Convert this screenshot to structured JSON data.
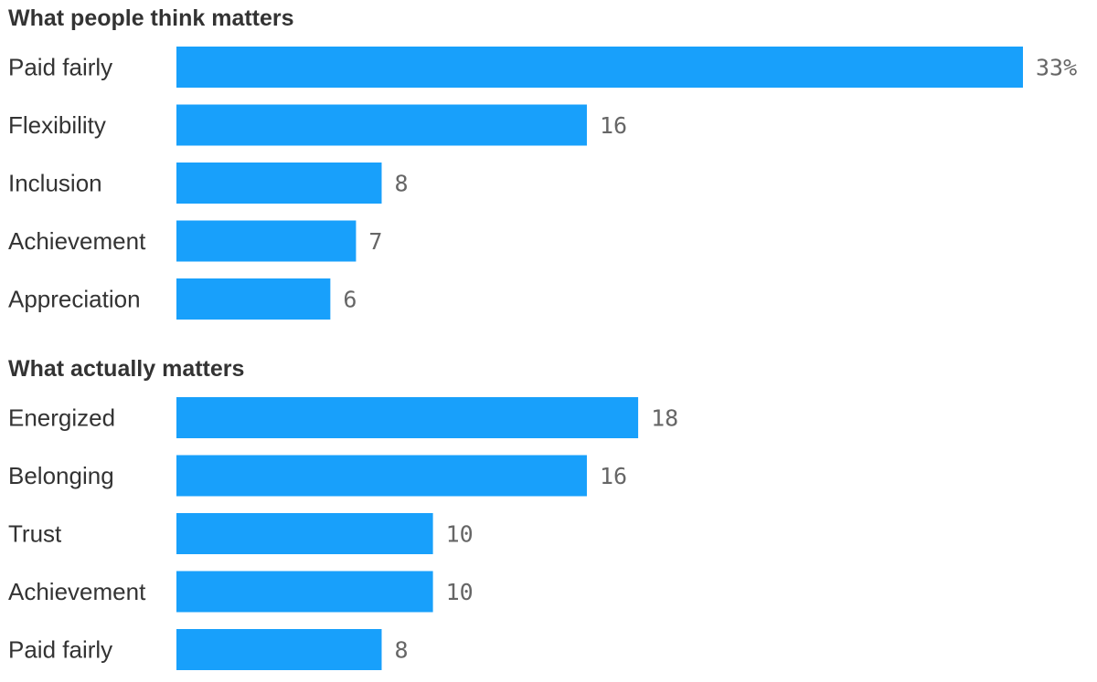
{
  "chart_data": [
    {
      "type": "bar",
      "orientation": "horizontal",
      "title": "What people think matters",
      "categories": [
        "Paid fairly",
        "Flexibility",
        "Inclusion",
        "Achievement",
        "Appreciation"
      ],
      "values": [
        33,
        16,
        8,
        7,
        6
      ],
      "value_labels": [
        "33%",
        "16",
        "8",
        "7",
        "6"
      ],
      "xlim": [
        0,
        33
      ],
      "grid": false,
      "legend": "none"
    },
    {
      "type": "bar",
      "orientation": "horizontal",
      "title": "What actually matters",
      "categories": [
        "Energized",
        "Belonging",
        "Trust",
        "Achievement",
        "Paid fairly"
      ],
      "values": [
        18,
        16,
        10,
        10,
        8
      ],
      "value_labels": [
        "18",
        "16",
        "10",
        "10",
        "8"
      ],
      "xlim": [
        0,
        33
      ],
      "grid": false,
      "legend": "none"
    }
  ],
  "colors": {
    "bar": "#18a0fb",
    "title": "#333333",
    "label": "#333333",
    "value": "#666666"
  }
}
